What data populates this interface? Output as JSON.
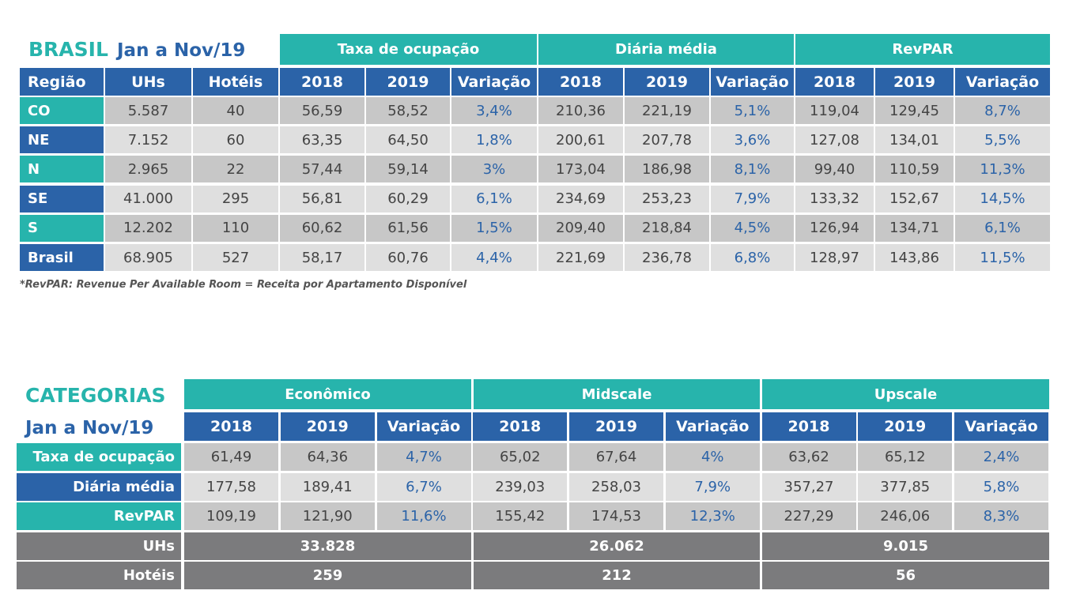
{
  "table1": {
    "title": "BRASIL",
    "period": "Jan a Nov/19",
    "groups": [
      "Taxa de ocupação",
      "Diária média",
      "RevPAR"
    ],
    "columns": [
      "Região",
      "UHs",
      "Hotéis",
      "2018",
      "2019",
      "Variação",
      "2018",
      "2019",
      "Variação",
      "2018",
      "2019",
      "Variação"
    ],
    "rows": [
      [
        "CO",
        "5.587",
        "40",
        "56,59",
        "58,52",
        "3,4%",
        "210,36",
        "221,19",
        "5,1%",
        "119,04",
        "129,45",
        "8,7%"
      ],
      [
        "NE",
        "7.152",
        "60",
        "63,35",
        "64,50",
        "1,8%",
        "200,61",
        "207,78",
        "3,6%",
        "127,08",
        "134,01",
        "5,5%"
      ],
      [
        "N",
        "2.965",
        "22",
        "57,44",
        "59,14",
        "3%",
        "173,04",
        "186,98",
        "8,1%",
        "99,40",
        "110,59",
        "11,3%"
      ],
      [
        "SE",
        "41.000",
        "295",
        "56,81",
        "60,29",
        "6,1%",
        "234,69",
        "253,23",
        "7,9%",
        "133,32",
        "152,67",
        "14,5%"
      ],
      [
        "S",
        "12.202",
        "110",
        "60,62",
        "61,56",
        "1,5%",
        "209,40",
        "218,84",
        "4,5%",
        "126,94",
        "134,71",
        "6,1%"
      ],
      [
        "Brasil",
        "68.905",
        "527",
        "58,17",
        "60,76",
        "4,4%",
        "221,69",
        "236,78",
        "6,8%",
        "128,97",
        "143,86",
        "11,5%"
      ]
    ],
    "footnote": "*RevPAR: Revenue Per Available Room = Receita por Apartamento Disponível"
  },
  "table2": {
    "title": "CATEGORIAS",
    "period": "Jan a Nov/19",
    "groups": [
      "Econômico",
      "Midscale",
      "Upscale"
    ],
    "columns": [
      "2018",
      "2019",
      "Variação",
      "2018",
      "2019",
      "Variação",
      "2018",
      "2019",
      "Variação"
    ],
    "rows": [
      {
        "label": "Taxa de ocupação",
        "cells": [
          "61,49",
          "64,36",
          "4,7%",
          "65,02",
          "67,64",
          "4%",
          "63,62",
          "65,12",
          "2,4%"
        ]
      },
      {
        "label": "Diária média",
        "cells": [
          "177,58",
          "189,41",
          "6,7%",
          "239,03",
          "258,03",
          "7,9%",
          "357,27",
          "377,85",
          "5,8%"
        ]
      },
      {
        "label": "RevPAR",
        "cells": [
          "109,19",
          "121,90",
          "11,6%",
          "155,42",
          "174,53",
          "12,3%",
          "227,29",
          "246,06",
          "8,3%"
        ]
      }
    ],
    "totals": [
      {
        "label": "UHs",
        "values": [
          "33.828",
          "26.062",
          "9.015"
        ]
      },
      {
        "label": "Hotéis",
        "values": [
          "259",
          "212",
          "56"
        ]
      }
    ]
  }
}
